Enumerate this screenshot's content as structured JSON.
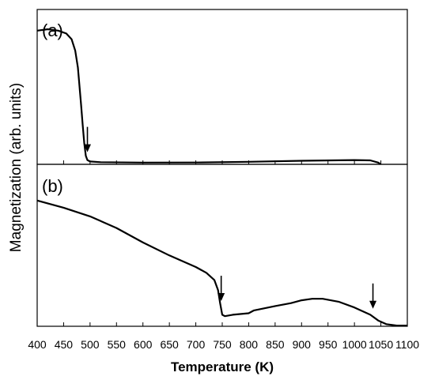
{
  "chart_data": [
    {
      "type": "line",
      "panel_label": "(a)",
      "xlim": [
        400,
        1100
      ],
      "grid": false,
      "series": [
        {
          "x": [
            400,
            420,
            440,
            455,
            465,
            472,
            477,
            480,
            483,
            486,
            489,
            492,
            495,
            500,
            520,
            600,
            700,
            800,
            900,
            1000,
            1030,
            1045,
            1050
          ],
          "y": [
            0.94,
            0.95,
            0.94,
            0.92,
            0.88,
            0.8,
            0.68,
            0.55,
            0.42,
            0.28,
            0.15,
            0.06,
            0.03,
            0.02,
            0.015,
            0.012,
            0.013,
            0.018,
            0.025,
            0.03,
            0.028,
            0.012,
            0.0
          ]
        }
      ],
      "arrows_x": [
        495
      ]
    },
    {
      "type": "line",
      "panel_label": "(b)",
      "xlim": [
        400,
        1100
      ],
      "grid": false,
      "series": [
        {
          "x": [
            400,
            450,
            500,
            550,
            600,
            650,
            700,
            720,
            735,
            742,
            746,
            750,
            755,
            770,
            800,
            810,
            850,
            880,
            900,
            920,
            940,
            970,
            1000,
            1030,
            1045,
            1060,
            1080,
            1100
          ],
          "y": [
            0.87,
            0.82,
            0.76,
            0.68,
            0.58,
            0.49,
            0.41,
            0.37,
            0.32,
            0.25,
            0.16,
            0.08,
            0.07,
            0.08,
            0.09,
            0.11,
            0.14,
            0.16,
            0.18,
            0.19,
            0.19,
            0.17,
            0.13,
            0.08,
            0.04,
            0.015,
            0.005,
            0.005
          ]
        }
      ],
      "arrows_x": [
        748,
        1035
      ]
    }
  ],
  "shared_axis": {
    "xlabel": "Temperature (K)",
    "ylabel": "Magnetization  (arb. units)",
    "xticks": [
      400,
      450,
      500,
      550,
      600,
      650,
      700,
      750,
      800,
      850,
      900,
      950,
      1000,
      1050,
      1100
    ],
    "xtick_labels": [
      "400",
      "450",
      "500",
      "550",
      "600",
      "650",
      "700",
      "750",
      "800",
      "850",
      "900",
      "950",
      "1000",
      "1050",
      "1100"
    ]
  }
}
